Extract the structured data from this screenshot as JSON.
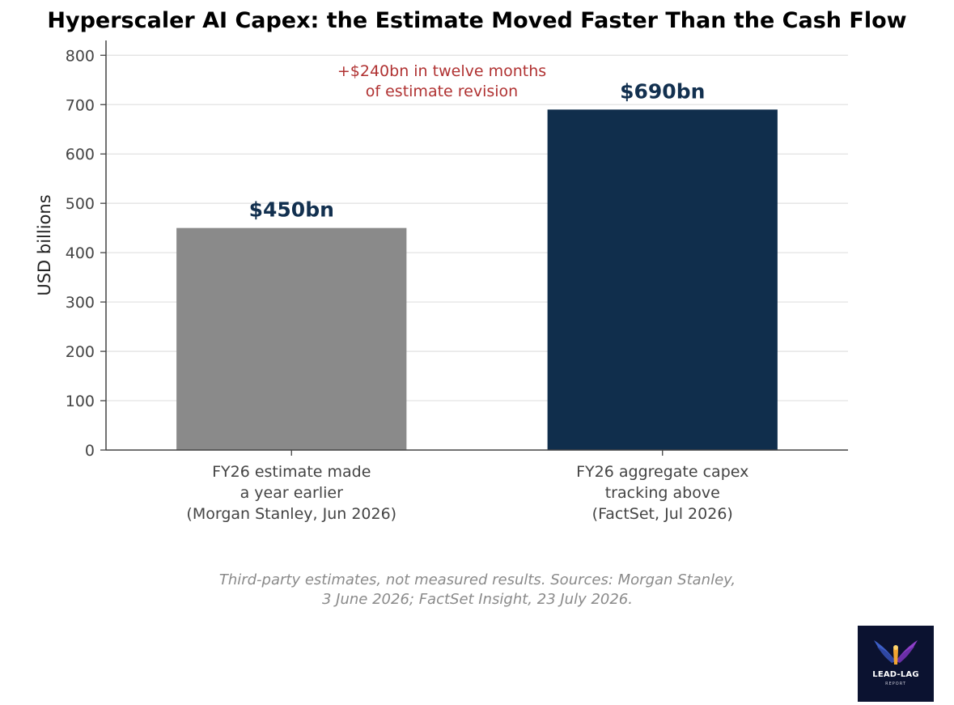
{
  "chart_data": {
    "type": "bar",
    "title": "Hyperscaler AI Capex: the Estimate Moved Faster Than the Cash Flow",
    "ylabel": "USD billions",
    "ylim": [
      0,
      830
    ],
    "yticks": [
      0,
      100,
      200,
      300,
      400,
      500,
      600,
      700,
      800
    ],
    "grid": true,
    "categories": [
      [
        "FY26 estimate made",
        "a year earlier",
        "(Morgan Stanley, Jun 2026)"
      ],
      [
        "FY26 aggregate capex",
        "tracking above",
        "(FactSet, Jul 2026)"
      ]
    ],
    "values": [
      450,
      690
    ],
    "data_labels": [
      "$450bn",
      "$690bn"
    ],
    "bar_colors": [
      "#8a8a8a",
      "#102e4c"
    ],
    "annotation": [
      "+$240bn in twelve months",
      "of estimate revision"
    ],
    "annotation_color": "#b03232"
  },
  "footnote": {
    "line1": "Third-party estimates, not measured results. Sources: Morgan Stanley,",
    "line2": "3 June 2026; FactSet Insight, 23 July 2026."
  },
  "logo": {
    "icon": "phoenix-wings-icon",
    "text": "LEAD-LAG",
    "subtext": "REPORT",
    "background": "#0b1230"
  }
}
